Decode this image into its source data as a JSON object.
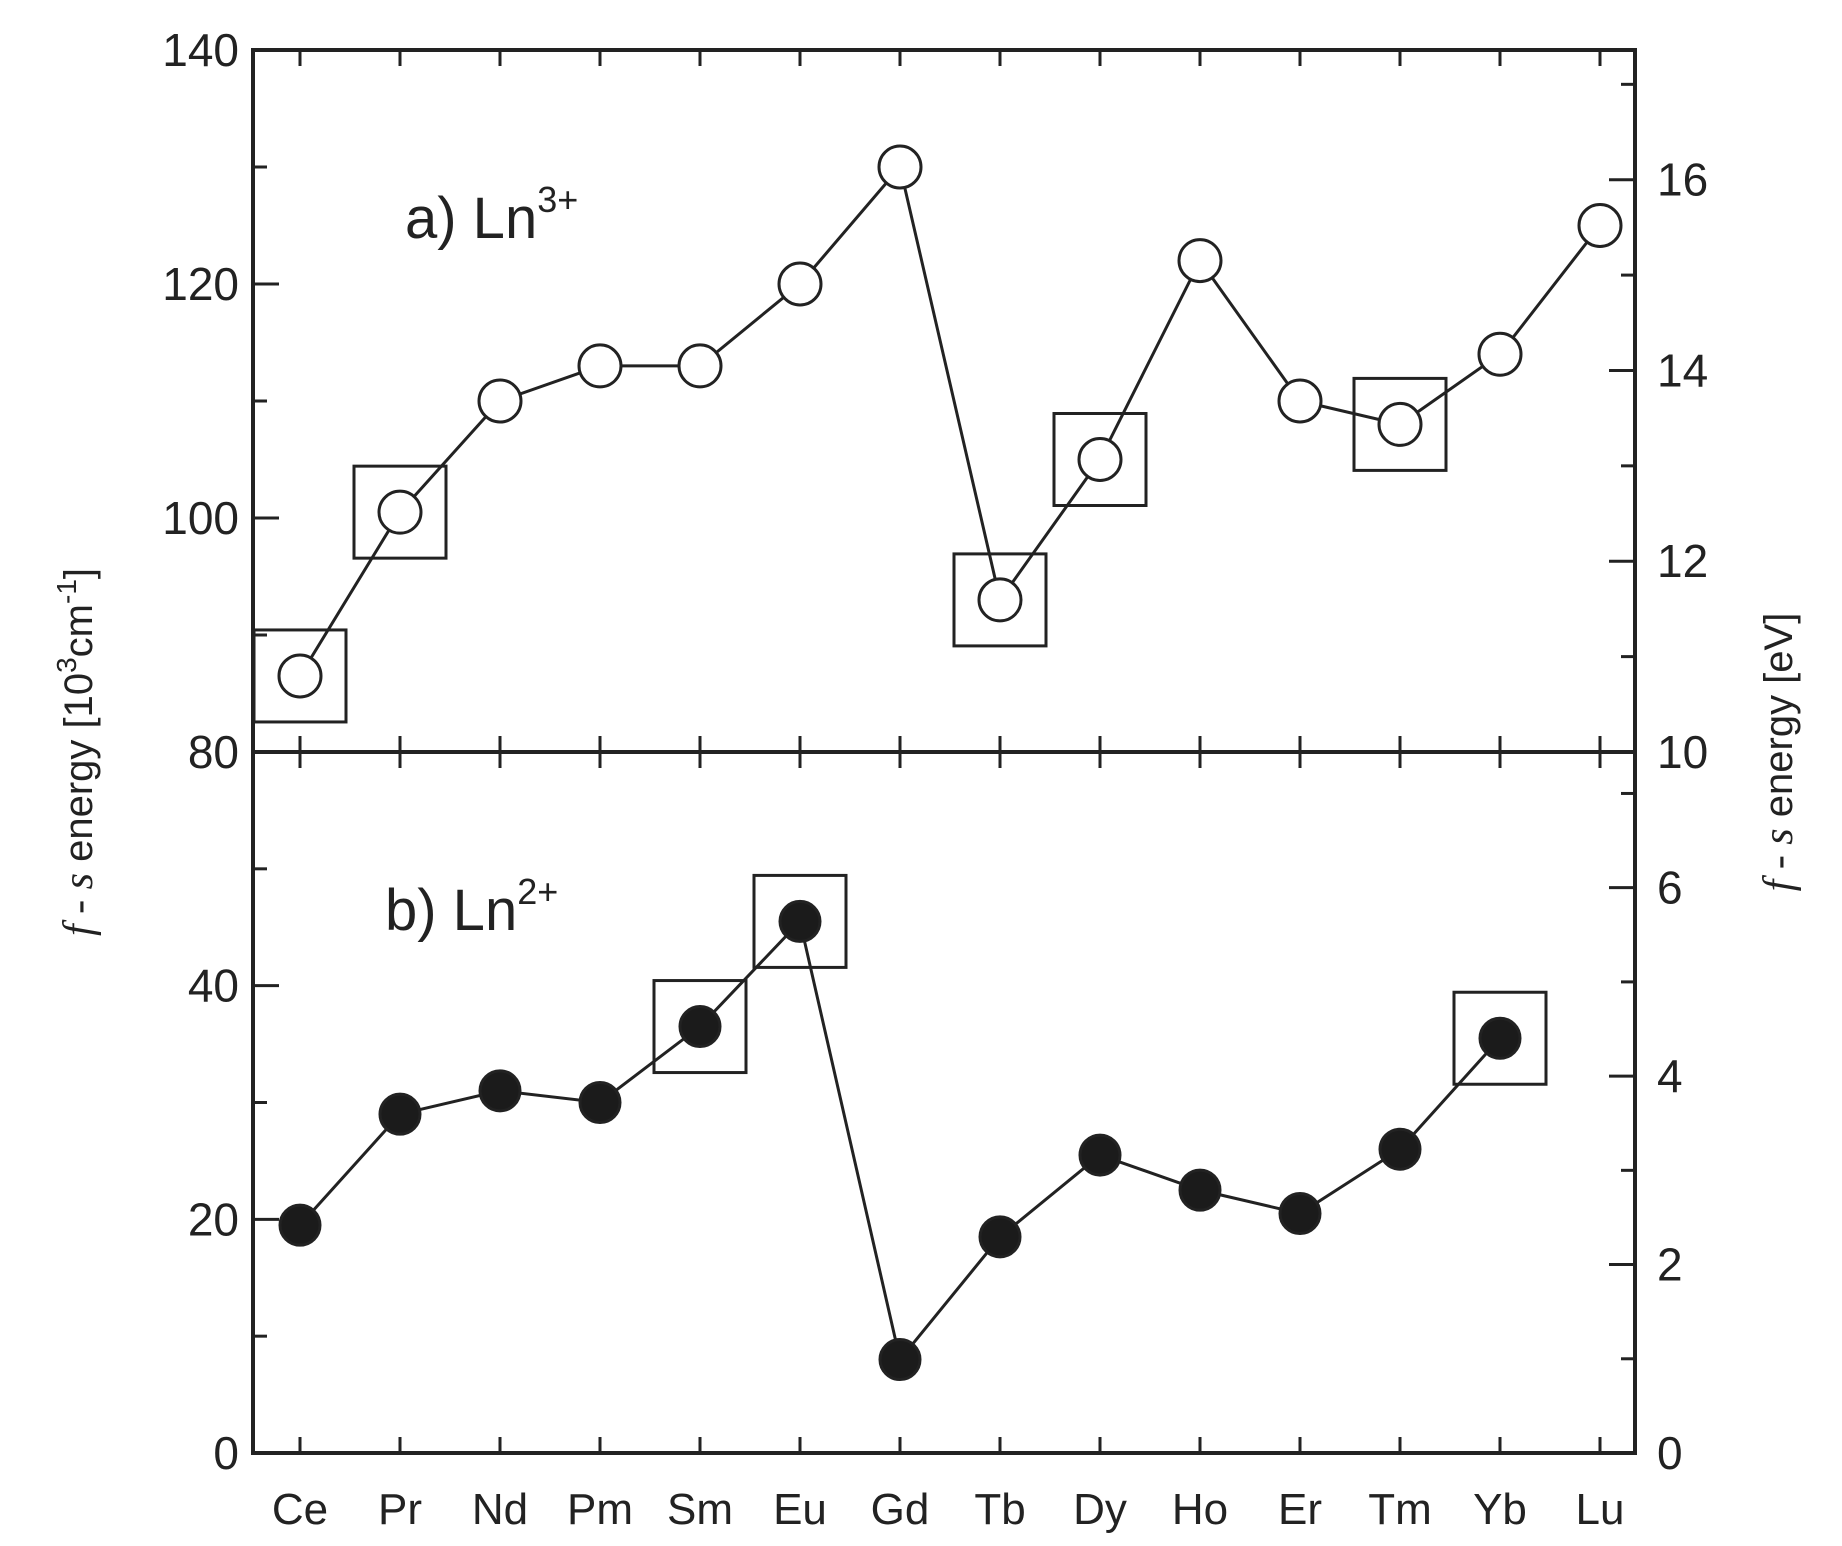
{
  "chart_data": {
    "type": "line",
    "categories": [
      "Ce",
      "Pr",
      "Nd",
      "Pm",
      "Sm",
      "Eu",
      "Gd",
      "Tb",
      "Dy",
      "Ho",
      "Er",
      "Tm",
      "Yb",
      "Lu"
    ],
    "ylabel_left": {
      "italic": "f - s",
      "text": " energy [10",
      "sup1": "3",
      "mid": "cm",
      "sup2": "-1",
      "end": "]"
    },
    "ylabel_right": {
      "italic": "f - s",
      "text": " energy [eV]"
    },
    "panels": [
      {
        "id": "a",
        "label": {
          "prefix": "a) Ln",
          "sup": "3+"
        },
        "marker": "open-circle",
        "ylim": [
          80,
          140
        ],
        "yticks": [
          "80",
          "100",
          "120",
          "140"
        ],
        "y2lim_eV": [
          10,
          17.36
        ],
        "y2ticks": [
          "10",
          "12",
          "14",
          "16"
        ],
        "values": [
          86.5,
          100.5,
          110,
          113,
          113,
          120,
          130,
          93,
          105,
          122,
          110,
          108,
          114,
          125
        ],
        "boxed": [
          "Ce",
          "Pr",
          "Tb",
          "Dy",
          "Tm"
        ]
      },
      {
        "id": "b",
        "label": {
          "prefix": "b) Ln",
          "sup": "2+"
        },
        "marker": "filled-circle",
        "ylim": [
          0,
          60
        ],
        "yticks": [
          "0",
          "20",
          "40"
        ],
        "y2lim_eV": [
          0,
          7.44
        ],
        "y2ticks": [
          "0",
          "2",
          "4",
          "6"
        ],
        "values": [
          19.5,
          29,
          31,
          30,
          36.5,
          45.5,
          8,
          18.5,
          25.5,
          22.5,
          20.5,
          26,
          35.5,
          null
        ],
        "boxed": [
          "Sm",
          "Eu",
          "Yb"
        ]
      }
    ],
    "grid": false,
    "legend": "none"
  }
}
